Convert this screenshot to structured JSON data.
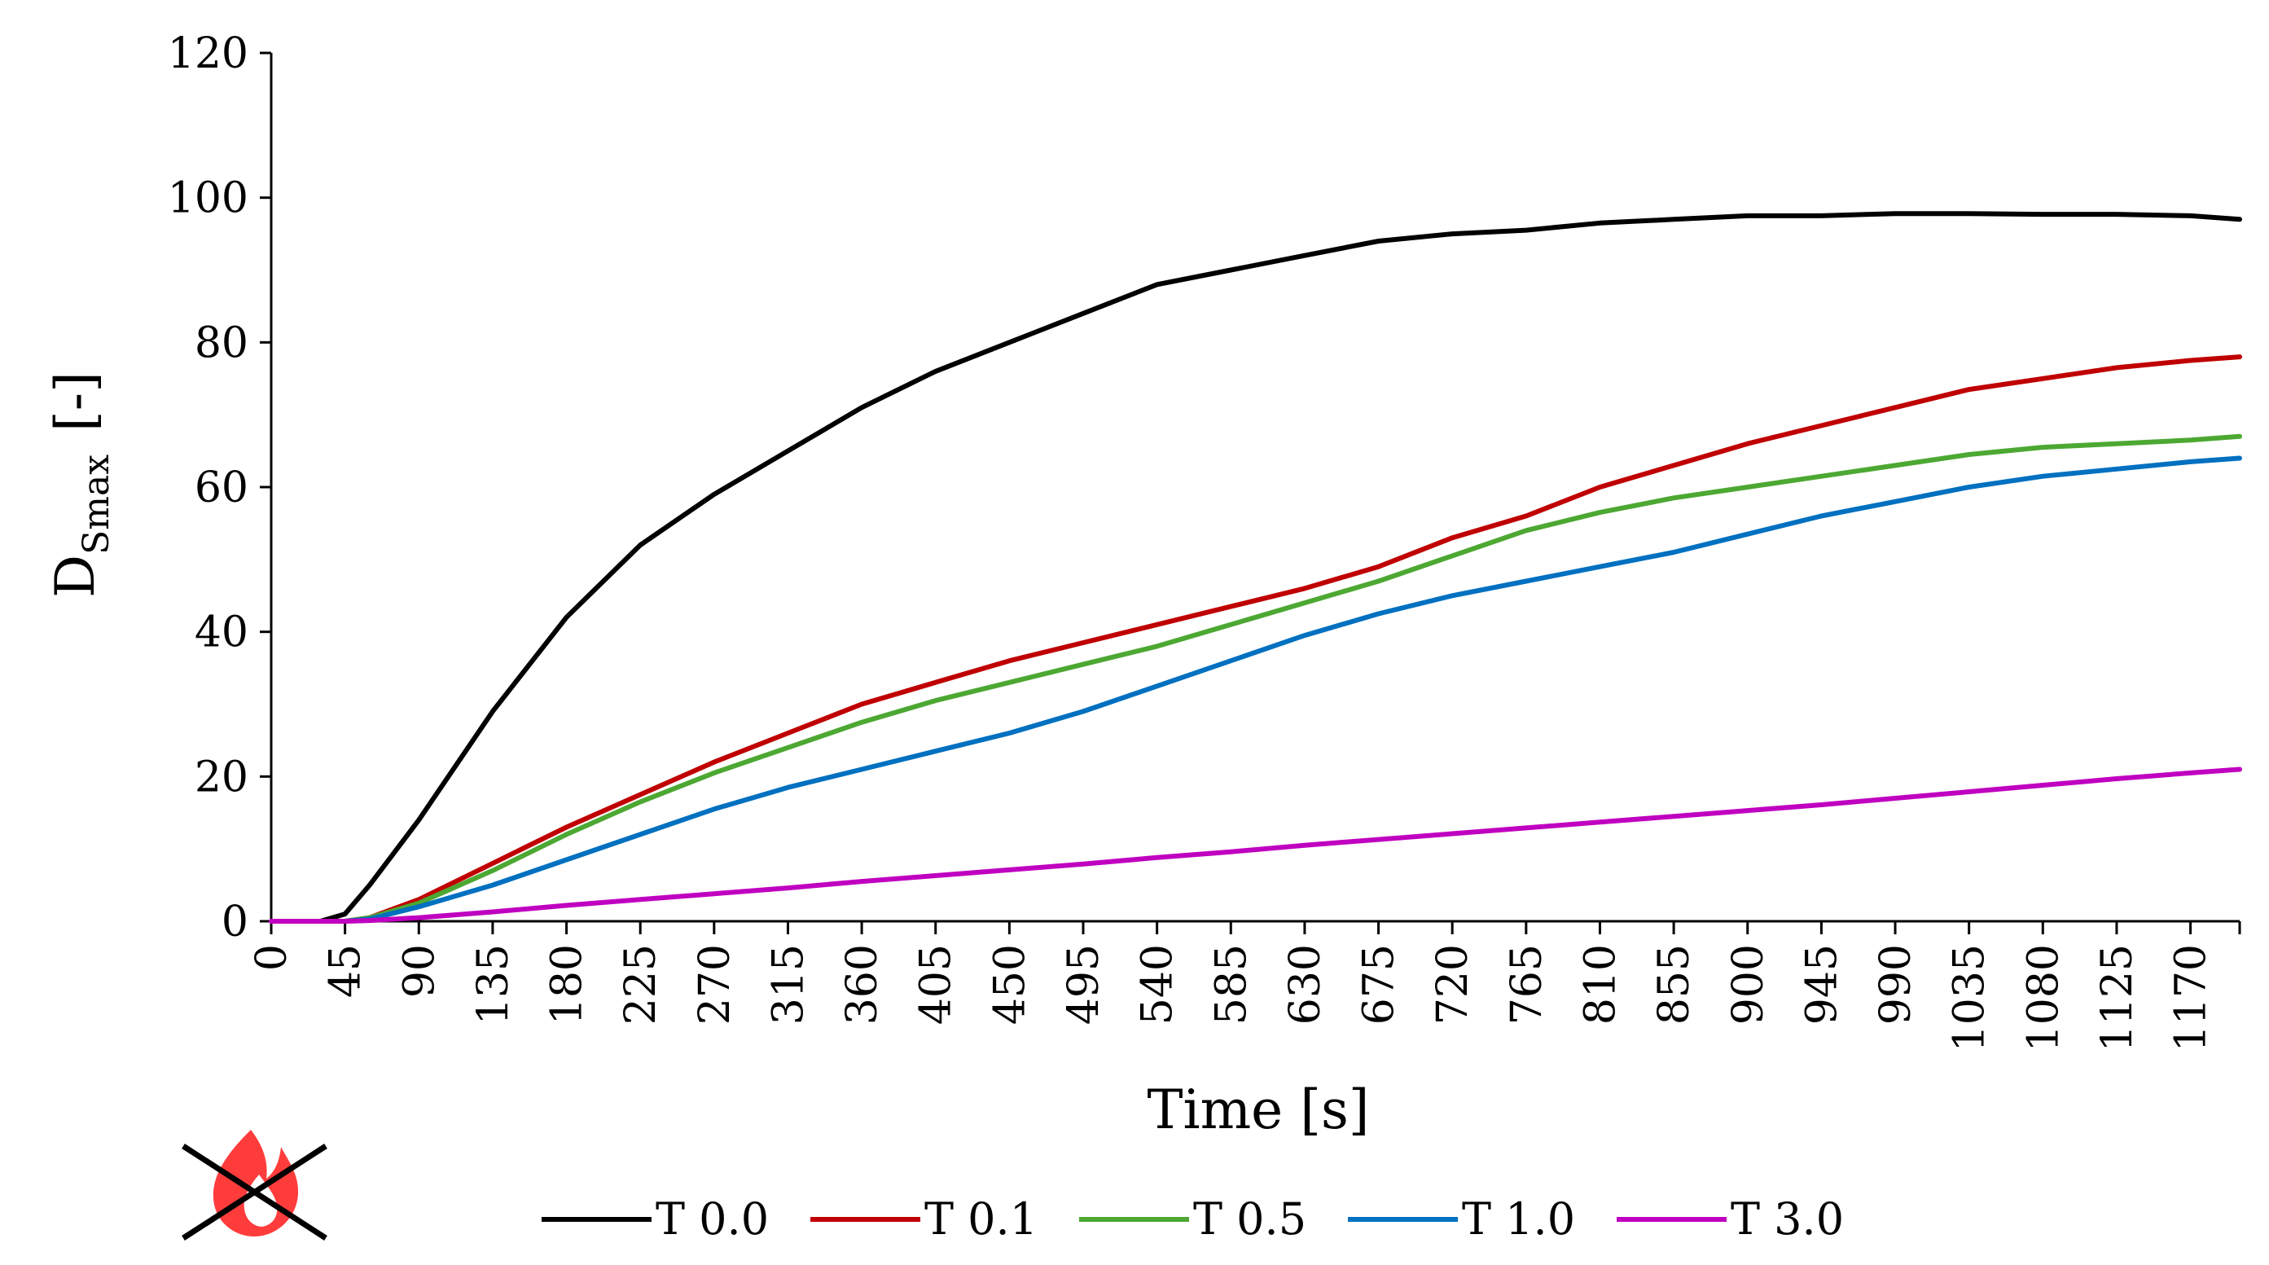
{
  "chart_data": {
    "type": "line",
    "title": "",
    "xlabel": "Time [s]",
    "ylabel": {
      "main": "D",
      "subscript": "Smax",
      "unit": "[-]"
    },
    "xlim": [
      0,
      1200
    ],
    "ylim": [
      0,
      120
    ],
    "x_ticks": [
      0,
      45,
      90,
      135,
      180,
      225,
      270,
      315,
      360,
      405,
      450,
      495,
      540,
      585,
      630,
      675,
      720,
      765,
      810,
      855,
      900,
      945,
      990,
      1035,
      1080,
      1125,
      1170
    ],
    "y_ticks": [
      0,
      20,
      40,
      60,
      80,
      100,
      120
    ],
    "grid": false,
    "legend_position": "bottom",
    "x": [
      0,
      30,
      45,
      60,
      90,
      135,
      180,
      225,
      270,
      315,
      360,
      405,
      450,
      495,
      540,
      585,
      630,
      675,
      720,
      765,
      810,
      855,
      900,
      945,
      990,
      1035,
      1080,
      1125,
      1170,
      1200
    ],
    "series": [
      {
        "name": "T 0.0",
        "color": "#000000",
        "values": [
          0,
          0,
          1,
          5,
          14,
          29,
          42,
          52,
          59,
          65,
          71,
          76,
          80,
          84,
          88,
          90,
          92,
          94,
          95,
          95.5,
          96.5,
          97,
          97.5,
          97.5,
          97.8,
          97.8,
          97.7,
          97.7,
          97.5,
          97
        ]
      },
      {
        "name": "T 0.1",
        "color": "#c00000",
        "values": [
          0,
          0,
          0,
          0.5,
          3,
          8,
          13,
          17.5,
          22,
          26,
          30,
          33,
          36,
          38.5,
          41,
          43.5,
          46,
          49,
          53,
          56,
          60,
          63,
          66,
          68.5,
          71,
          73.5,
          75,
          76.5,
          77.5,
          78
        ]
      },
      {
        "name": "T 0.5",
        "color": "#4ca832",
        "values": [
          0,
          0,
          0,
          0.5,
          2.5,
          7,
          12,
          16.5,
          20.5,
          24,
          27.5,
          30.5,
          33,
          35.5,
          38,
          41,
          44,
          47,
          50.5,
          54,
          56.5,
          58.5,
          60,
          61.5,
          63,
          64.5,
          65.5,
          66,
          66.5,
          67
        ]
      },
      {
        "name": "T 1.0",
        "color": "#0070c0",
        "values": [
          0,
          0,
          0,
          0.3,
          2,
          5,
          8.5,
          12,
          15.5,
          18.5,
          21,
          23.5,
          26,
          29,
          32.5,
          36,
          39.5,
          42.5,
          45,
          47,
          49,
          51,
          53.5,
          56,
          58,
          60,
          61.5,
          62.5,
          63.5,
          64
        ]
      },
      {
        "name": "T 3.0",
        "color": "#c000c0",
        "values": [
          0,
          0,
          0,
          0.1,
          0.5,
          1.3,
          2.2,
          3,
          3.8,
          4.6,
          5.5,
          6.3,
          7.1,
          7.9,
          8.8,
          9.6,
          10.5,
          11.3,
          12.1,
          12.9,
          13.7,
          14.5,
          15.3,
          16.1,
          17,
          17.9,
          18.8,
          19.7,
          20.5,
          21
        ]
      }
    ]
  }
}
